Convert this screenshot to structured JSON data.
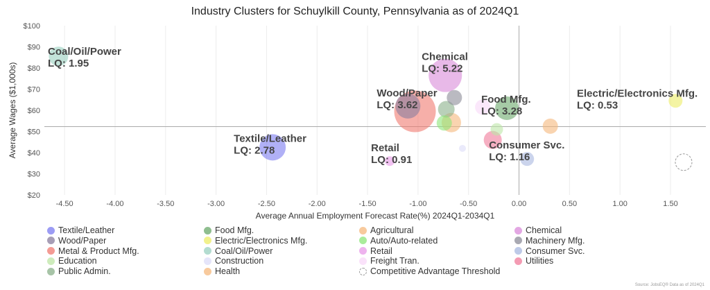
{
  "title": "Industry Clusters for Schuylkill County, Pennsylvania as of 2024Q1",
  "source": "Source: JobsEQ® Data as of 2024Q1",
  "chart_data": {
    "type": "scatter",
    "title": "Industry Clusters for Schuylkill County, Pennsylvania as of 2024Q1",
    "xlabel": "Average Annual Employment Forecast Rate(%) 2024Q1-2034Q1",
    "ylabel": "Average Wages ($1,000s)",
    "xlim": [
      -4.7,
      1.85
    ],
    "ylim": [
      20,
      100
    ],
    "x_ticks": [
      "-4.50",
      "-4.00",
      "-3.50",
      "-3.00",
      "-2.50",
      "-2.00",
      "-1.50",
      "-1.00",
      "-0.50",
      "0.00",
      "0.50",
      "1.00",
      "1.50"
    ],
    "x_tick_values": [
      -4.5,
      -4.0,
      -3.5,
      -3.0,
      -2.5,
      -2.0,
      -1.5,
      -1.0,
      -0.5,
      0.0,
      0.5,
      1.0,
      1.5
    ],
    "y_ticks": [
      "$20",
      "$30",
      "$40",
      "$50",
      "$60",
      "$70",
      "$80",
      "$90",
      "$100"
    ],
    "y_tick_values": [
      20,
      30,
      40,
      50,
      60,
      70,
      80,
      90,
      100
    ],
    "reference_lines": {
      "x": 0.0,
      "y": 52.3
    },
    "grid": "vertical",
    "legend_position": "bottom",
    "series": [
      {
        "name": "Textile/Leather",
        "color": "#7b7bf0",
        "x": -2.44,
        "y": 42.5,
        "size": 19,
        "label": "Textile/Leather",
        "lq": "LQ: 2.78"
      },
      {
        "name": "Food Mfg.",
        "color": "#6aa86a",
        "x": -0.12,
        "y": 61.0,
        "size": 17,
        "label": "Food Mfg.",
        "lq": "LQ: 3.28"
      },
      {
        "name": "Agricultural",
        "color": "#f5b87c",
        "x": -0.67,
        "y": 54.2,
        "size": 14
      },
      {
        "name": "Chemical",
        "color": "#d98ad9",
        "x": -0.73,
        "y": 76.5,
        "size": 24,
        "label": "Chemical",
        "lq": "LQ: 5.22"
      },
      {
        "name": "Wood/Paper",
        "color": "#8a7d9e",
        "x": -1.1,
        "y": 62.0,
        "size": 18,
        "label": "Wood/Paper",
        "lq": "LQ: 3.62"
      },
      {
        "name": "Electric/Electronics Mfg.",
        "color": "#ecec66",
        "x": 1.55,
        "y": 64.5,
        "size": 10,
        "label": "Electric/Electronics Mfg.",
        "lq": "LQ: 0.53"
      },
      {
        "name": "Auto/Auto-related",
        "color": "#8ee67a",
        "x": -0.74,
        "y": 54.0,
        "size": 11
      },
      {
        "name": "Machinery Mfg.",
        "color": "#8c8c98",
        "x": -0.64,
        "y": 66.0,
        "size": 11
      },
      {
        "name": "Metal & Product Mfg.",
        "color": "#f07a70",
        "x": -1.03,
        "y": 59.5,
        "size": 30
      },
      {
        "name": "Coal/Oil/Power",
        "color": "#99d0c0",
        "x": -4.56,
        "y": 85.5,
        "size": 14,
        "label": "Coal/Oil/Power",
        "lq": "LQ: 1.95"
      },
      {
        "name": "Retail",
        "color": "#e89ae8",
        "x": -1.28,
        "y": 36.0,
        "size": 7,
        "label": "Retail",
        "lq": "LQ: 0.91"
      },
      {
        "name": "Consumer Svc.",
        "color": "#a8b8e0",
        "x": 0.08,
        "y": 37.0,
        "size": 10,
        "label": "Consumer Svc.",
        "lq": "LQ: 1.16"
      },
      {
        "name": "Education",
        "color": "#bde6a6",
        "x": -0.22,
        "y": 51.0,
        "size": 9
      },
      {
        "name": "Construction",
        "color": "#dcdcf8",
        "x": -0.56,
        "y": 42.0,
        "size": 5
      },
      {
        "name": "Freight Tran.",
        "color": "#f8d8f8",
        "x": -0.36,
        "y": 61.5,
        "size": 11
      },
      {
        "name": "Utilities",
        "color": "#f07a9a",
        "x": -0.26,
        "y": 46.0,
        "size": 13
      },
      {
        "name": "Public Admin.",
        "color": "#8ab08a",
        "x": -0.72,
        "y": 60.5,
        "size": 12
      },
      {
        "name": "Health",
        "color": "#f5b87c",
        "x": 0.31,
        "y": 52.5,
        "size": 11
      },
      {
        "name": "Competitive Advantage Threshold",
        "color": "#ffffff",
        "stroke": "#999999",
        "dashed": true,
        "x": 1.63,
        "y": 35.5,
        "size": 12
      }
    ]
  }
}
